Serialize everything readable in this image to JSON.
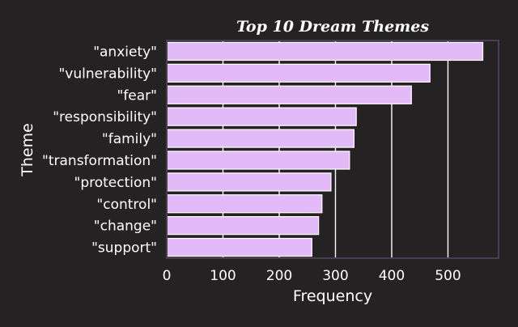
{
  "chart_data": {
    "type": "bar",
    "orientation": "horizontal",
    "title": "Top 10 Dream Themes",
    "xlabel": "Frequency",
    "ylabel": "Theme",
    "categories": [
      "\"anxiety\"",
      "\"vulnerability\"",
      "\"fear\"",
      "\"responsibility\"",
      "\"family\"",
      "\"transformation\"",
      "\"protection\"",
      "\"control\"",
      "\"change\"",
      "\"support\""
    ],
    "values": [
      562,
      468,
      435,
      337,
      333,
      325,
      292,
      276,
      270,
      258
    ],
    "xlim": [
      0,
      590
    ],
    "xticks": [
      0,
      100,
      200,
      300,
      400,
      500
    ],
    "xtick_labels": [
      "0",
      "100",
      "200",
      "300",
      "400",
      "500"
    ],
    "grid": "vertical",
    "colors": {
      "background": "#242223",
      "bar_fill": "#e2baf8",
      "bar_edge": "#ffffff",
      "gridline": "#ffffff",
      "frame": "#4a3d52",
      "text": "#ffffff"
    }
  }
}
